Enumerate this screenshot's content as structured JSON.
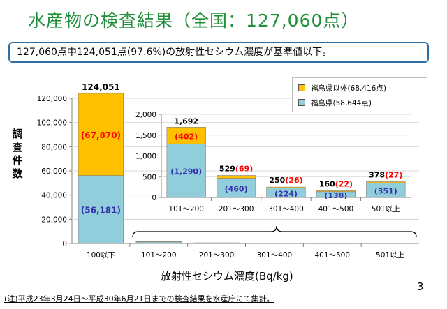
{
  "title": "水産物の検査結果（全国：127,060点）",
  "summary": "127,060点中124,051点(97.6%)の放射性セシウム濃度が基準値以下。",
  "ylabel": "調査件数",
  "xlabel": "放射性セシウム濃度(Bq/kg)",
  "note": "(注)平成23年3月24日～平成30年6月21日までの検査結果を水産庁にて集計。",
  "page_number": "3",
  "legend": [
    {
      "label": "福島県以外(68,416点)",
      "color": "#ffc000"
    },
    {
      "label": "福島県(58,644点)",
      "color": "#92cddc"
    }
  ],
  "colors": {
    "outside": "#ffc000",
    "fukushima": "#92cddc",
    "red_label": "#ff0000",
    "blue_label": "#3333aa"
  },
  "chart_data": [
    {
      "type": "bar",
      "stacked": true,
      "categories": [
        "100以下",
        "101～200",
        "201～300",
        "301～400",
        "401～500",
        "501以上"
      ],
      "series": [
        {
          "name": "福島県(58,644点)",
          "values": [
            56181,
            1290,
            460,
            224,
            138,
            351
          ],
          "labels": [
            "(56,181)",
            "",
            "",
            "",
            "",
            ""
          ]
        },
        {
          "name": "福島県以外(68,416点)",
          "values": [
            67870,
            402,
            69,
            26,
            22,
            27
          ],
          "labels": [
            "(67,870)",
            "",
            "",
            "",
            "",
            ""
          ]
        }
      ],
      "totals": [
        "124,051",
        "",
        "",
        "",
        "",
        ""
      ],
      "ylim": [
        0,
        120000
      ],
      "yticks": [
        "0",
        "20,000",
        "40,000",
        "60,000",
        "80,000",
        "100,000",
        "120,000"
      ],
      "yticks_values": [
        0,
        20000,
        40000,
        60000,
        80000,
        100000,
        120000
      ],
      "xlabel": "放射性セシウム濃度(Bq/kg)",
      "ylabel": "調査件数"
    },
    {
      "type": "bar",
      "stacked": true,
      "inset": true,
      "categories": [
        "101～200",
        "201～300",
        "301～400",
        "401～500",
        "501以上"
      ],
      "series": [
        {
          "name": "福島県(58,644点)",
          "values": [
            1290,
            460,
            224,
            138,
            351
          ],
          "labels": [
            "(1,290)",
            "(460)",
            "(224)",
            "(138)",
            "(351)"
          ]
        },
        {
          "name": "福島県以外(68,416点)",
          "values": [
            402,
            69,
            26,
            22,
            27
          ],
          "labels": [
            "(402)",
            "(69)",
            "(26)",
            "(22)",
            "(27)"
          ]
        }
      ],
      "totals": [
        "1,692",
        "529",
        "250",
        "160",
        "378"
      ],
      "ylim": [
        0,
        2000
      ],
      "yticks": [
        "0",
        "500",
        "1,000",
        "1,500",
        "2,000"
      ],
      "yticks_values": [
        0,
        500,
        1000,
        1500,
        2000
      ]
    }
  ]
}
